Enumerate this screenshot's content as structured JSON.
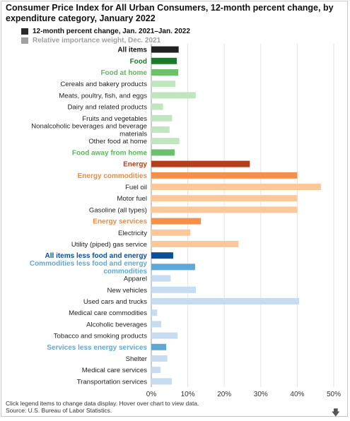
{
  "title": "Consumer Price Index for All Urban Consumers, 12-month percent change, by expenditure category, January 2022",
  "legend": [
    {
      "label": "12-month percent change, Jan. 2021–Jan. 2022",
      "color": "#2b2b2b",
      "active": true
    },
    {
      "label": "Relative importance weight, Dec. 2021",
      "color": "#a0a0a0",
      "active": false
    }
  ],
  "footer": {
    "instructions": "Click legend items to change data display. Hover over chart to view data.",
    "source": "Source: U.S. Bureau of Labor Statistics."
  },
  "icons": {
    "download": "download-arrow-icon"
  },
  "chart_data": {
    "type": "bar",
    "orientation": "horizontal",
    "title": "Consumer Price Index for All Urban Consumers, 12-month percent change, by expenditure category, January 2022",
    "xlim": [
      0,
      50
    ],
    "x_ticks": [
      "0%",
      "10%",
      "20%",
      "30%",
      "40%",
      "50%"
    ],
    "grid": true,
    "categories": [
      {
        "label": [
          "All items"
        ],
        "value": 7.5,
        "color": "#222222",
        "label_color": "#111111",
        "bold": true
      },
      {
        "label": [
          "Food"
        ],
        "value": 7.0,
        "color": "#1e7a2a",
        "label_color": "#1e7a2a",
        "bold": true
      },
      {
        "label": [
          "Food at home"
        ],
        "value": 7.4,
        "color": "#6cc26c",
        "label_color": "#5cb85c",
        "bold": true
      },
      {
        "label": [
          "Cereals and bakery products"
        ],
        "value": 6.6,
        "color": "#bfe6bf",
        "label_color": "#222222",
        "bold": false
      },
      {
        "label": [
          "Meats, poultry, fish, and eggs"
        ],
        "value": 12.2,
        "color": "#bfe6bf",
        "label_color": "#222222",
        "bold": false
      },
      {
        "label": [
          "Dairy and related products"
        ],
        "value": 3.2,
        "color": "#bfe6bf",
        "label_color": "#222222",
        "bold": false
      },
      {
        "label": [
          "Fruits and vegetables"
        ],
        "value": 5.7,
        "color": "#bfe6bf",
        "label_color": "#222222",
        "bold": false
      },
      {
        "label": [
          "Nonalcoholic beverages and beverage",
          "materials"
        ],
        "value": 5.0,
        "color": "#bfe6bf",
        "label_color": "#222222",
        "bold": false
      },
      {
        "label": [
          "Other food at home"
        ],
        "value": 7.7,
        "color": "#bfe6bf",
        "label_color": "#222222",
        "bold": false
      },
      {
        "label": [
          "Food away from home"
        ],
        "value": 6.4,
        "color": "#6cc26c",
        "label_color": "#5cb85c",
        "bold": true
      },
      {
        "label": [
          "Energy"
        ],
        "value": 27.0,
        "color": "#b3401a",
        "label_color": "#b3401a",
        "bold": true
      },
      {
        "label": [
          "Energy commodities"
        ],
        "value": 40.0,
        "color": "#f5904a",
        "label_color": "#f08a3c",
        "bold": true
      },
      {
        "label": [
          "Fuel oil"
        ],
        "value": 46.5,
        "color": "#fcc89a",
        "label_color": "#222222",
        "bold": false
      },
      {
        "label": [
          "Motor fuel"
        ],
        "value": 40.0,
        "color": "#fcc89a",
        "label_color": "#222222",
        "bold": false
      },
      {
        "label": [
          "Gasoline (all types)"
        ],
        "value": 40.0,
        "color": "#fcc89a",
        "label_color": "#222222",
        "bold": false
      },
      {
        "label": [
          "Energy services"
        ],
        "value": 13.6,
        "color": "#f5904a",
        "label_color": "#f08a3c",
        "bold": true
      },
      {
        "label": [
          "Electricity"
        ],
        "value": 10.7,
        "color": "#fcc89a",
        "label_color": "#222222",
        "bold": false
      },
      {
        "label": [
          "Utility (piped) gas service"
        ],
        "value": 23.9,
        "color": "#fcc89a",
        "label_color": "#222222",
        "bold": false
      },
      {
        "label": [
          "All items less food and energy"
        ],
        "value": 6.0,
        "color": "#0d4f94",
        "label_color": "#0d4f94",
        "bold": true
      },
      {
        "label": [
          "Commodities less food and energy",
          "commodities"
        ],
        "value": 12.0,
        "color": "#5ea8d8",
        "label_color": "#5ea8d8",
        "bold": true
      },
      {
        "label": [
          "Apparel"
        ],
        "value": 5.3,
        "color": "#c6dcf0",
        "label_color": "#222222",
        "bold": false
      },
      {
        "label": [
          "New vehicles"
        ],
        "value": 12.2,
        "color": "#c6dcf0",
        "label_color": "#222222",
        "bold": false
      },
      {
        "label": [
          "Used cars and trucks"
        ],
        "value": 40.5,
        "color": "#c6dcf0",
        "label_color": "#222222",
        "bold": false
      },
      {
        "label": [
          "Medical care commodities"
        ],
        "value": 1.6,
        "color": "#c6dcf0",
        "label_color": "#222222",
        "bold": false
      },
      {
        "label": [
          "Alcoholic beverages"
        ],
        "value": 2.7,
        "color": "#c6dcf0",
        "label_color": "#222222",
        "bold": false
      },
      {
        "label": [
          "Tobacco and smoking products"
        ],
        "value": 7.2,
        "color": "#c6dcf0",
        "label_color": "#222222",
        "bold": false
      },
      {
        "label": [
          "Services less energy services"
        ],
        "value": 4.1,
        "color": "#5ea8d8",
        "label_color": "#5ea8d8",
        "bold": true
      },
      {
        "label": [
          "Shelter"
        ],
        "value": 4.4,
        "color": "#c6dcf0",
        "label_color": "#222222",
        "bold": false
      },
      {
        "label": [
          "Medical care services"
        ],
        "value": 2.5,
        "color": "#c6dcf0",
        "label_color": "#222222",
        "bold": false
      },
      {
        "label": [
          "Transportation services"
        ],
        "value": 5.6,
        "color": "#c6dcf0",
        "label_color": "#222222",
        "bold": false
      }
    ]
  }
}
